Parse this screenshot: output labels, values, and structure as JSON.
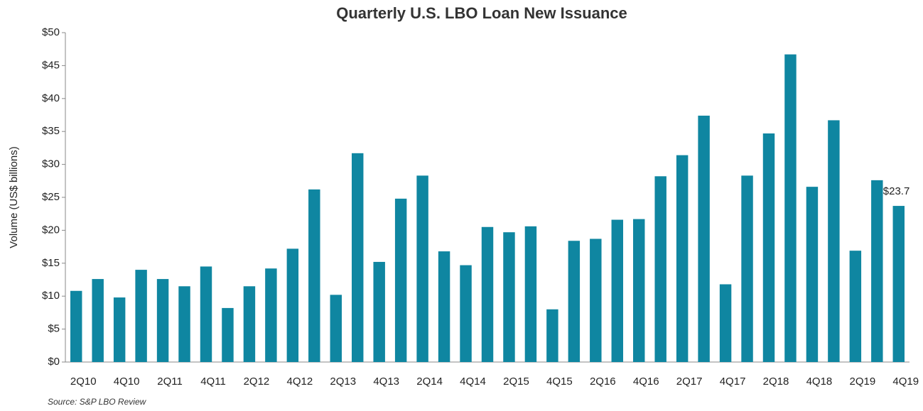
{
  "chart_data": {
    "type": "bar",
    "title": "Quarterly U.S. LBO Loan New Issuance",
    "y_label": "Volume (US$ billions)",
    "source": "Source: S&P LBO Review",
    "categories": [
      "2Q10",
      null,
      "4Q10",
      null,
      "2Q11",
      null,
      "4Q11",
      null,
      "2Q12",
      null,
      "4Q12",
      null,
      "2Q13",
      null,
      "4Q13",
      null,
      "2Q14",
      null,
      "4Q14",
      null,
      "2Q15",
      null,
      "4Q15",
      null,
      "2Q16",
      null,
      "4Q16",
      null,
      "2Q17",
      null,
      "4Q17",
      null,
      "2Q18",
      null,
      "4Q18",
      null,
      "2Q19",
      null,
      "4Q19"
    ],
    "values": [
      10.8,
      12.6,
      9.8,
      14.0,
      12.6,
      11.5,
      14.5,
      8.2,
      11.5,
      14.2,
      17.2,
      26.2,
      10.2,
      31.7,
      15.2,
      24.8,
      28.3,
      16.8,
      14.7,
      20.5,
      19.7,
      20.6,
      8.0,
      18.4,
      18.7,
      21.6,
      21.7,
      28.2,
      31.4,
      37.4,
      11.8,
      28.3,
      34.7,
      46.7,
      26.6,
      36.7,
      16.9,
      27.6,
      23.7
    ],
    "value_labels": [
      null,
      null,
      null,
      null,
      null,
      null,
      null,
      null,
      null,
      null,
      null,
      null,
      null,
      null,
      null,
      null,
      null,
      null,
      null,
      null,
      null,
      null,
      null,
      null,
      null,
      null,
      null,
      null,
      null,
      null,
      null,
      null,
      null,
      null,
      null,
      null,
      null,
      null,
      "$23.7"
    ],
    "color": "#0f86a1",
    "ylim": [
      0,
      50
    ],
    "yticks": [
      {
        "value": 0,
        "label": "$0"
      },
      {
        "value": 5,
        "label": "$5"
      },
      {
        "value": 10,
        "label": "$10"
      },
      {
        "value": 15,
        "label": "$15"
      },
      {
        "value": 20,
        "label": "$20"
      },
      {
        "value": 25,
        "label": "$25"
      },
      {
        "value": 30,
        "label": "$30"
      },
      {
        "value": 35,
        "label": "$35"
      },
      {
        "value": 40,
        "label": "$40"
      },
      {
        "value": 45,
        "label": "$45"
      },
      {
        "value": 50,
        "label": "$50"
      }
    ],
    "grid": false
  }
}
